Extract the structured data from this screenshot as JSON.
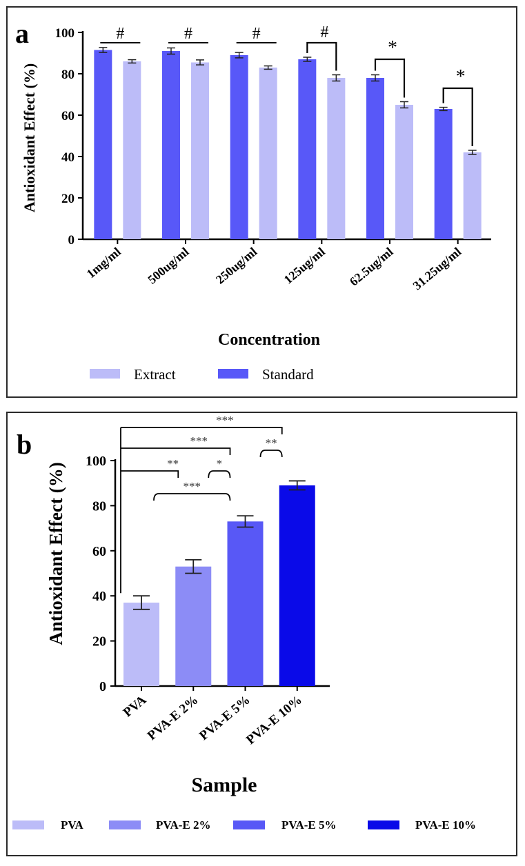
{
  "chart_data": [
    {
      "panel": "a",
      "type": "bar",
      "panel_label": "a",
      "title": "",
      "xlabel": "Concentration",
      "ylabel": "Antioxidant Effect (%)",
      "ylim": [
        0,
        100
      ],
      "yticks": [
        "0",
        "20",
        "40",
        "60",
        "80",
        "100"
      ],
      "categories": [
        "1mg/ml",
        "500ug/ml",
        "250ug/ml",
        "125ug/ml",
        "62.5ug/ml",
        "31.25ug/ml"
      ],
      "series": [
        {
          "name": "Standard",
          "color": "#5858f8",
          "values": [
            91.5,
            91,
            89,
            87,
            78,
            63
          ],
          "errors": [
            1.2,
            1.5,
            1.3,
            1.0,
            1.5,
            0.8
          ]
        },
        {
          "name": "Extract",
          "color": "#bcbcf8",
          "values": [
            86,
            85.5,
            83,
            78,
            65,
            42
          ],
          "errors": [
            0.8,
            1.2,
            0.8,
            1.5,
            1.5,
            1.0
          ]
        }
      ],
      "significance": [
        "#",
        "#",
        "#",
        "#",
        "*",
        "*"
      ],
      "legend": [
        "Extract",
        "Standard"
      ],
      "legend_position": "bottom",
      "grid": false
    },
    {
      "panel": "b",
      "type": "bar",
      "panel_label": "b",
      "title": "",
      "xlabel": "Sample",
      "ylabel": "Antioxidant Effect (%)",
      "ylim": [
        0,
        100
      ],
      "yticks": [
        "0",
        "20",
        "40",
        "60",
        "80",
        "100"
      ],
      "categories": [
        "PVA",
        "PVA-E 2%",
        "PVA-E 5%",
        "PVA-E 10%"
      ],
      "colors": [
        "#bcbcf8",
        "#8c8cf6",
        "#5858f6",
        "#0a0ae8"
      ],
      "values": [
        37,
        53,
        73,
        89
      ],
      "errors": [
        3,
        3,
        2.5,
        2
      ],
      "comparisons": [
        {
          "from": 0,
          "to": 3,
          "label": "***"
        },
        {
          "from": 0,
          "to": 2,
          "label": "***"
        },
        {
          "from": 0,
          "to": 1,
          "label": "**"
        },
        {
          "from": 1,
          "to": 2,
          "label": "*"
        },
        {
          "from": 2,
          "to": 3,
          "label": "**"
        },
        {
          "from": 0,
          "to": 2,
          "label": "***"
        }
      ],
      "legend": [
        "PVA",
        "PVA-E 2%",
        "PVA-E 5%",
        "PVA-E 10%"
      ],
      "legend_position": "bottom",
      "grid": false
    }
  ]
}
